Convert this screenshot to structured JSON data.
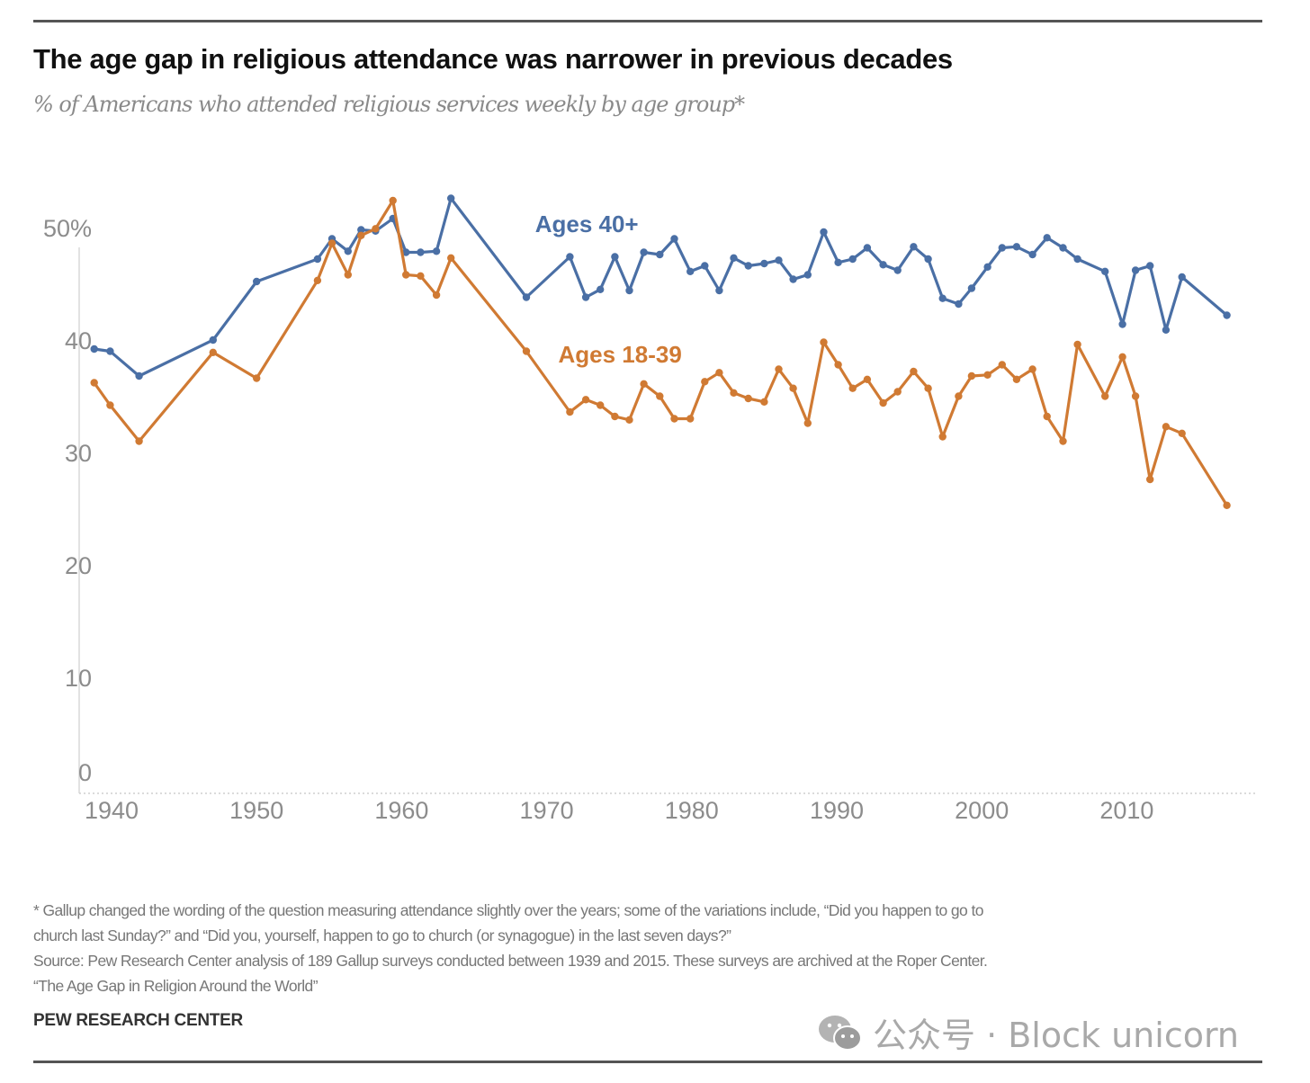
{
  "header": {
    "title": "The age gap in religious attendance was narrower in previous decades",
    "subtitle": "% of Americans who attended religious services weekly by age group*"
  },
  "footer": {
    "note_lines": [
      "* Gallup changed the wording of the question measuring attendance slightly over the years; some of the variations include, “Did you happen to go to",
      "church last Sunday?” and “Did you, yourself, happen to go to church (or synagogue) in the last seven days?”",
      "Source: Pew Research Center analysis of 189 Gallup surveys conducted between 1939 and 2015. These surveys are archived at the Roper Center.",
      "“The Age Gap in Religion Around the World”"
    ],
    "brand": "PEW RESEARCH CENTER",
    "watermark": "公众号 · Block unicorn",
    "watermark_icon": "wechat-icon"
  },
  "colors": {
    "ages_40_plus": "#4a6fa5",
    "ages_18_39": "#d07a33",
    "axis_text": "#8c8c8c"
  },
  "chart_data": {
    "type": "line",
    "title": "The age gap in religious attendance was narrower in previous decades",
    "subtitle": "% of Americans who attended religious services weekly by age group*",
    "xlabel": "",
    "ylabel": "",
    "xlim": [
      1938,
      2018
    ],
    "ylim": [
      0,
      50
    ],
    "x_ticks": [
      1940,
      1950,
      1960,
      1970,
      1980,
      1990,
      2000,
      2010
    ],
    "x_tick_labels": [
      "1940",
      "1950",
      "1960",
      "1970",
      "1980",
      "1990",
      "2000",
      "2010"
    ],
    "y_ticks": [
      0,
      10,
      20,
      30,
      40,
      50
    ],
    "y_tick_labels": [
      "0",
      "10",
      "20",
      "30",
      "40",
      "50%"
    ],
    "grid": false,
    "legend": "inline labels",
    "x": [
      1938.8,
      1939.9,
      1941.9,
      1947.0,
      1950.0,
      1954.2,
      1955.2,
      1956.3,
      1957.2,
      1958.2,
      1959.4,
      1960.3,
      1961.3,
      1962.4,
      1963.4,
      1968.6,
      1971.6,
      1972.7,
      1973.7,
      1974.7,
      1975.7,
      1976.7,
      1977.8,
      1978.8,
      1979.9,
      1980.9,
      1981.9,
      1982.9,
      1983.9,
      1985.0,
      1986.0,
      1987.0,
      1988.0,
      1989.1,
      1990.1,
      1991.1,
      1992.1,
      1993.2,
      1994.2,
      1995.3,
      1996.3,
      1997.3,
      1998.4,
      1999.3,
      2000.4,
      2001.4,
      2002.4,
      2003.5,
      2004.5,
      2005.6,
      2006.6,
      2008.5,
      2009.7,
      2010.6,
      2011.6,
      2012.7,
      2013.8,
      2016.9
    ],
    "series": [
      {
        "name": "Ages 40+",
        "color": "#4a6fa5",
        "label_at": [
          1969.2,
          49.6
        ],
        "values": [
          39.2,
          39.0,
          36.8,
          40.0,
          45.2,
          47.2,
          49.0,
          47.9,
          49.8,
          49.7,
          50.8,
          47.8,
          47.8,
          47.9,
          52.6,
          43.8,
          47.4,
          43.8,
          44.5,
          47.4,
          44.4,
          47.8,
          47.6,
          49.0,
          46.1,
          46.6,
          44.4,
          47.3,
          46.6,
          46.8,
          47.1,
          45.4,
          45.8,
          49.6,
          46.9,
          47.2,
          48.2,
          46.7,
          46.2,
          48.3,
          47.2,
          43.7,
          43.2,
          44.6,
          46.5,
          48.2,
          48.3,
          47.6,
          49.1,
          48.2,
          47.2,
          46.1,
          41.4,
          46.2,
          46.6,
          40.9,
          45.6,
          42.2
        ]
      },
      {
        "name": "Ages 18-39",
        "color": "#d07a33",
        "label_at": [
          1970.8,
          38.0
        ],
        "values": [
          36.2,
          34.2,
          31.0,
          38.9,
          36.6,
          45.3,
          48.6,
          45.8,
          49.3,
          49.9,
          52.4,
          45.8,
          45.7,
          44.0,
          47.3,
          39.0,
          33.6,
          34.7,
          34.2,
          33.2,
          32.9,
          36.1,
          35.0,
          33.0,
          33.0,
          36.3,
          37.1,
          35.3,
          34.8,
          34.5,
          37.4,
          35.7,
          32.6,
          39.8,
          37.8,
          35.7,
          36.5,
          34.4,
          35.4,
          37.2,
          35.7,
          31.4,
          35.0,
          36.8,
          36.9,
          37.8,
          36.5,
          37.4,
          33.2,
          31.0,
          39.6,
          35.0,
          38.5,
          35.0,
          27.6,
          32.3,
          31.7,
          25.3
        ]
      }
    ]
  }
}
